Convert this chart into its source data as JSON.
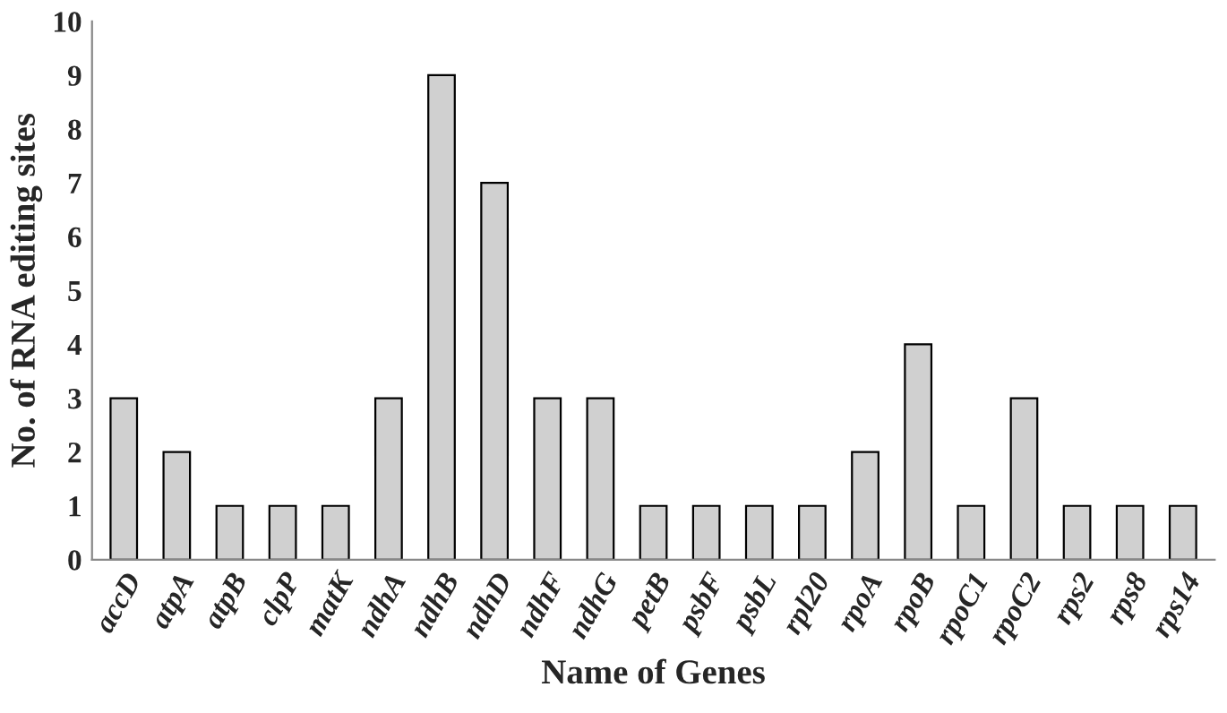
{
  "chart_data": {
    "type": "bar",
    "xlabel": "Name of Genes",
    "ylabel": "No. of RNA editing sites",
    "categories": [
      "accD",
      "atpA",
      "atpB",
      "clpP",
      "matK",
      "ndhA",
      "ndhB",
      "ndhD",
      "ndhF",
      "ndhG",
      "petB",
      "psbF",
      "psbL",
      "rpl20",
      "rpoA",
      "rpoB",
      "rpoC1",
      "rpoC2",
      "rps2",
      "rps8",
      "rps14"
    ],
    "values": [
      3,
      2,
      1,
      1,
      1,
      3,
      9,
      7,
      3,
      3,
      1,
      1,
      1,
      1,
      2,
      4,
      1,
      3,
      1,
      1,
      1
    ],
    "color": "#d0d0d0",
    "ylim": [
      0,
      10
    ],
    "yticks": [
      0,
      1,
      2,
      3,
      4,
      5,
      6,
      7,
      8,
      9,
      10
    ],
    "grid": false,
    "legend": false
  }
}
